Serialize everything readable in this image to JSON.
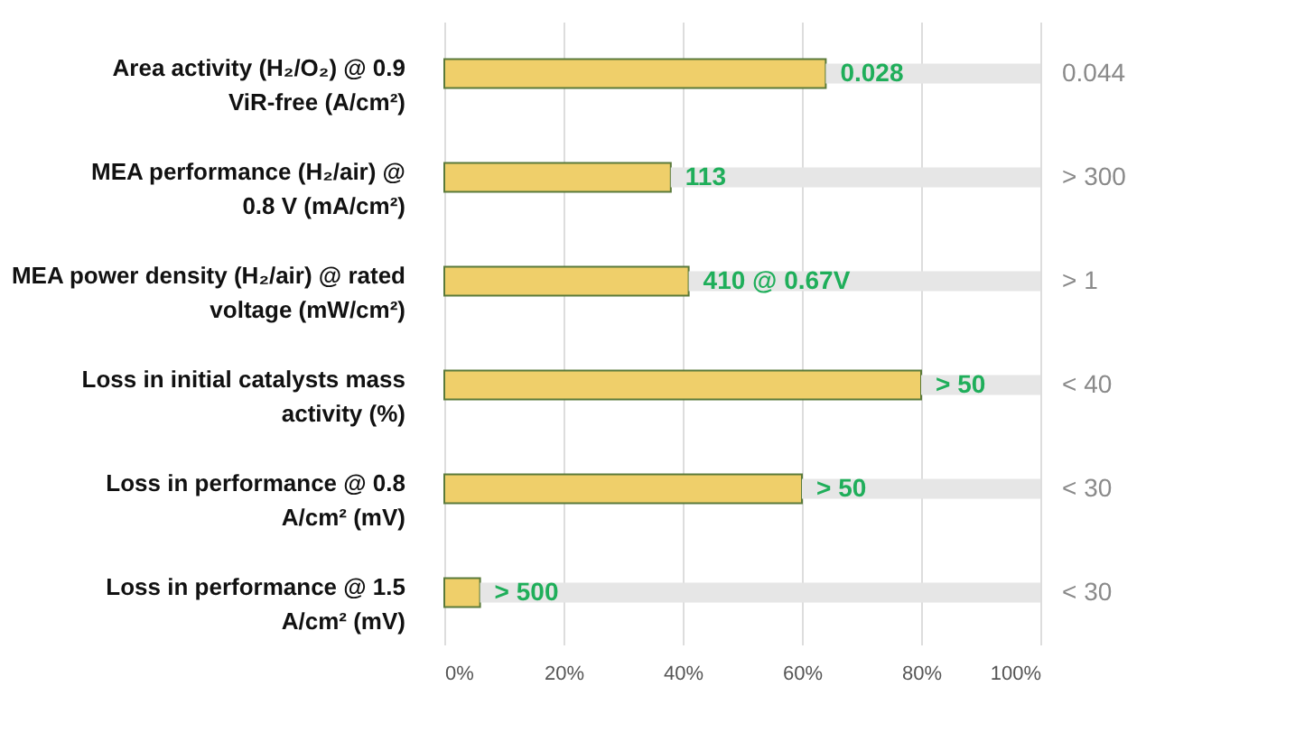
{
  "chart_data": {
    "type": "bar",
    "orientation": "horizontal",
    "stacked": true,
    "categories": [
      "Area activity (H₂/O₂) @ 0.9\nViR-free (A/cm²)",
      "MEA performance (H₂/air) @\n0.8 V (mA/cm²)",
      "MEA power density (H₂/air) @ rated\nvoltage (mW/cm²)",
      "Loss in initial catalysts mass\nactivity (%)",
      "Loss in performance @ 0.8\nA/cm² (mV)",
      "Loss in performance @ 1.5\nA/cm² (mV)"
    ],
    "series": [
      {
        "color": "#efcf6a",
        "values": [
          64,
          38,
          41,
          80,
          60,
          6
        ]
      },
      {
        "color": "#e6e6e6",
        "values": [
          36,
          62,
          59,
          20,
          40,
          94
        ]
      }
    ],
    "annotations": [
      {
        "text": "0.028",
        "x": 64,
        "y": "Area activity (H₂/O₂) @ 0.9\nViR-free (A/cm²)"
      },
      {
        "text": "113",
        "x": 38,
        "y": "MEA performance (H₂/air) @\n0.8 V (mA/cm²)"
      },
      {
        "text": "410 @ 0.67V",
        "x": 41,
        "y": "MEA power density (H₂/air) @ rated\nvoltage (mW/cm²)"
      },
      {
        "text": "> 50",
        "x": 80,
        "y": "Loss in initial catalysts mass\nactivity (%)"
      },
      {
        "text": "> 50",
        "x": 60,
        "y": "Loss in performance @ 0.8\nA/cm² (mV)"
      },
      {
        "text": "> 500",
        "x": 6,
        "y": "Loss in performance @ 1.5\nA/cm² (mV)"
      },
      {
        "text": "0.044",
        "x": 100,
        "y": "Area activity (H₂/O₂) @ 0.9\nViR-free (A/cm²)"
      },
      {
        "text": "> 300",
        "x": 100,
        "y": "MEA performance (H₂/air) @\n0.8 V (mA/cm²)"
      },
      {
        "text": "> 1",
        "x": 100,
        "y": "MEA power density (H₂/air) @ rated\nvoltage (mW/cm²)"
      },
      {
        "text": "< 40",
        "x": 100,
        "y": "Loss in initial catalysts mass\nactivity (%)"
      },
      {
        "text": "< 30",
        "x": 100,
        "y": "Loss in performance @ 0.8\nA/cm² (mV)"
      },
      {
        "text": "< 30",
        "x": 100,
        "y": "Loss in performance @ 1.5\nA/cm² (mV)"
      }
    ],
    "xlim": [
      0,
      100
    ],
    "xticks": [
      {
        "value": 0,
        "label": "0%"
      },
      {
        "value": 20,
        "label": "20%"
      },
      {
        "value": 40,
        "label": "40%"
      },
      {
        "value": 60,
        "label": "60%"
      },
      {
        "value": 80,
        "label": "80%"
      },
      {
        "value": 100,
        "label": "100%"
      }
    ],
    "grid": "x"
  }
}
